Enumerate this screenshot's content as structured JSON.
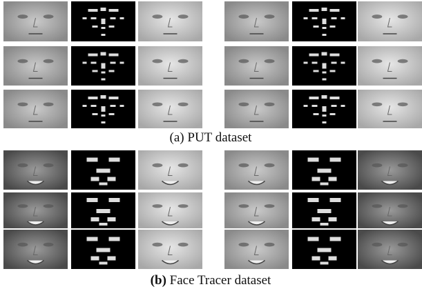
{
  "panels": [
    {
      "label": "(a)",
      "caption": "PUT dataset"
    },
    {
      "label": "(b)",
      "caption": "Face Tracer dataset"
    }
  ]
}
